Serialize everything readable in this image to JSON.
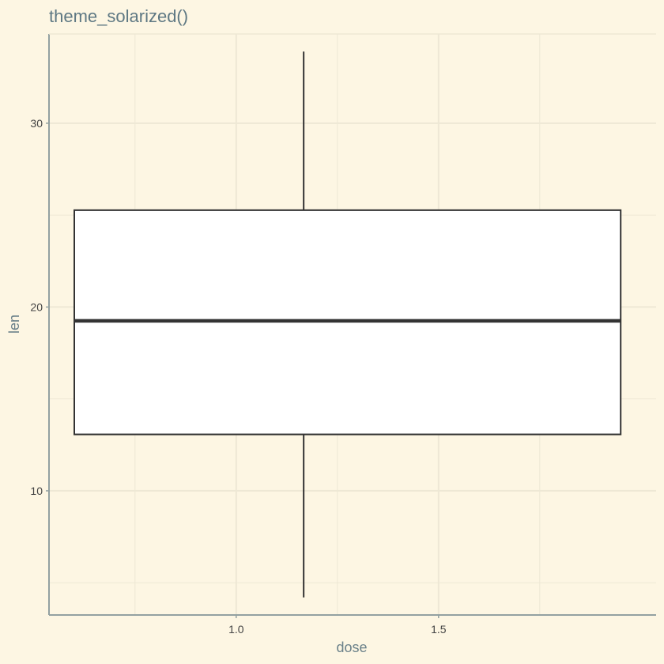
{
  "chart_data": {
    "type": "boxplot",
    "title": "theme_solarized()",
    "xlabel": "dose",
    "ylabel": "len",
    "xlim": [
      0.5375,
      2.0375
    ],
    "ylim": [
      3.245,
      34.855
    ],
    "x_ticks": [
      "1.0",
      "1.5"
    ],
    "x_tick_values": [
      1.0,
      1.5
    ],
    "y_ticks": [
      "10",
      "20",
      "30"
    ],
    "y_tick_values": [
      10,
      20,
      30
    ],
    "x_minor_grid": [
      0.75,
      1.25,
      1.75
    ],
    "y_minor_grid": [
      5,
      15,
      25
    ],
    "grid": true,
    "box": {
      "x": 1.1667,
      "x_range": [
        0.6,
        1.95
      ],
      "whisker_low": 4.2,
      "q1": 13.07,
      "median": 19.25,
      "q3": 25.27,
      "whisker_high": 33.9
    },
    "colors": {
      "background": "#fdf6e3",
      "grid": "#eee8d5",
      "axis_line": "#93a1a1",
      "box_fill": "#ffffff",
      "box_line": "#333333"
    }
  }
}
